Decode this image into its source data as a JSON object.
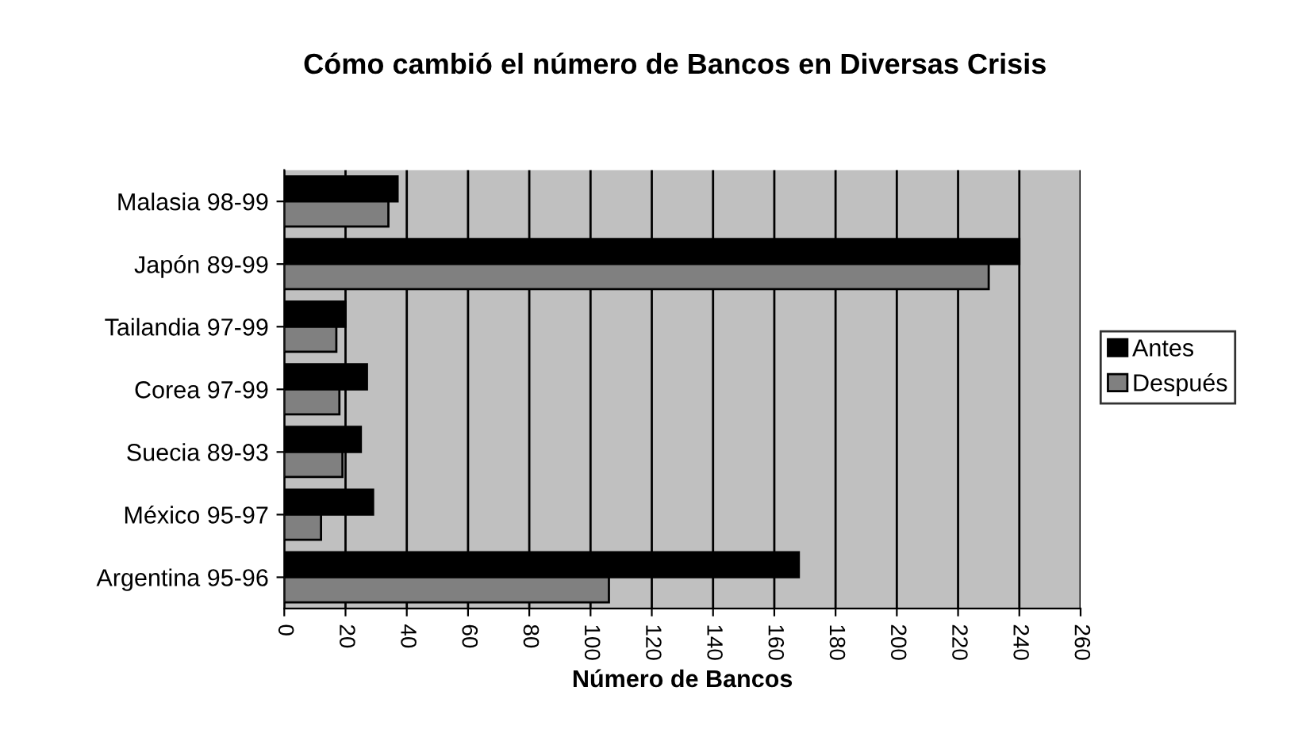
{
  "chart_data": {
    "type": "bar",
    "orientation": "horizontal",
    "title": "Cómo cambió el número de Bancos en Diversas Crisis",
    "xlabel": "Número de Bancos",
    "categories": [
      "Malasia 98-99",
      "Japón 89-99",
      "Tailandia 97-99",
      "Corea 97-99",
      "Suecia 89-93",
      "México 95-97",
      "Argentina 95-96"
    ],
    "series": [
      {
        "name": "Antes",
        "color": "#000000",
        "values": [
          37,
          240,
          20,
          27,
          25,
          29,
          168
        ]
      },
      {
        "name": "Después",
        "color": "#808080",
        "values": [
          34,
          230,
          17,
          18,
          19,
          12,
          106
        ]
      }
    ],
    "xlim": [
      0,
      260
    ],
    "xticks": [
      0,
      20,
      40,
      60,
      80,
      100,
      120,
      140,
      160,
      180,
      200,
      220,
      240,
      260
    ],
    "grid": "x",
    "legend": "right"
  }
}
